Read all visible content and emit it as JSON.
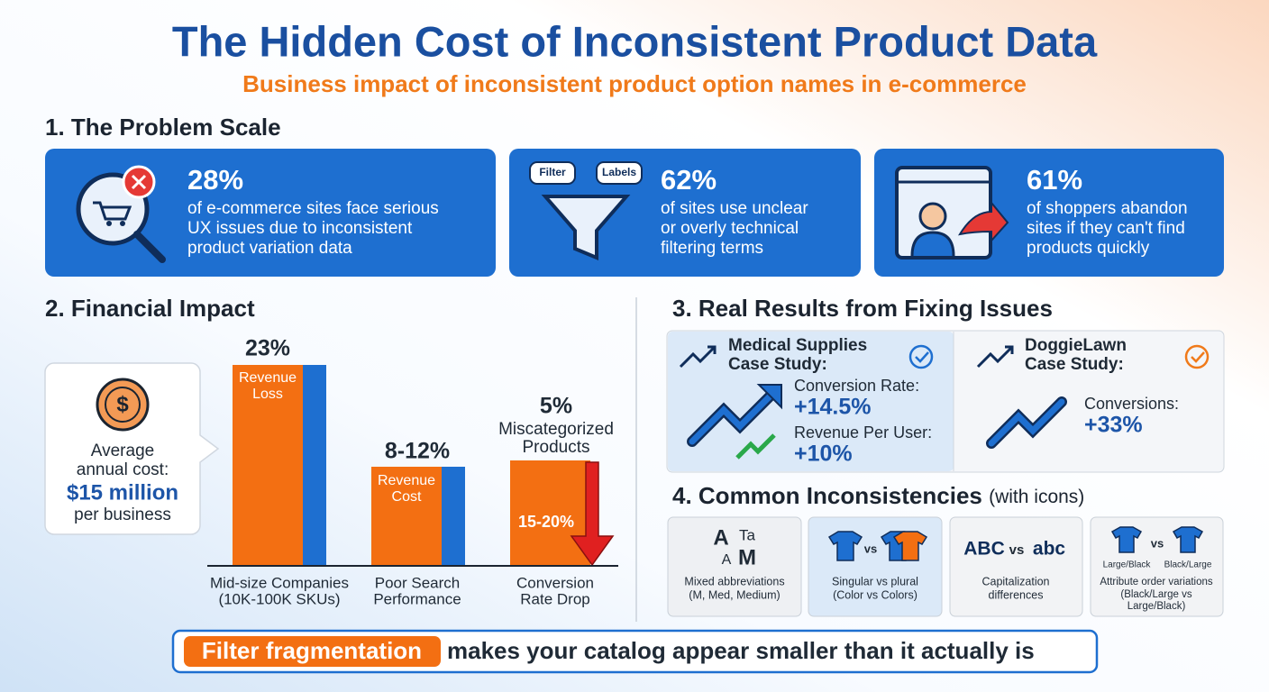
{
  "header": {
    "title": "The Hidden Cost of Inconsistent Product Data",
    "subtitle": "Business impact of inconsistent product option names in e-commerce"
  },
  "problem": {
    "heading": "1. The Problem Scale",
    "cards": [
      {
        "stat": "28%",
        "lines": [
          "of e-commerce sites face serious",
          "UX issues due to inconsistent",
          "product variation data"
        ]
      },
      {
        "stat": "62%",
        "lines": [
          "of sites use unclear",
          "or overly technical",
          "filtering terms"
        ],
        "icon_labels": [
          "Filter",
          "Labels"
        ]
      },
      {
        "stat": "61%",
        "lines": [
          "of shoppers abandon",
          "sites if they can't find",
          "products quickly"
        ]
      }
    ]
  },
  "financial": {
    "heading": "2. Financial Impact",
    "callout": {
      "lines": [
        "Average",
        "annual cost:"
      ],
      "amount": "$15 million",
      "tail": "per business"
    },
    "bars": [
      {
        "top": [
          "23%"
        ],
        "inside": [
          "Revenue",
          "Loss"
        ],
        "category": [
          "Mid-size Companies",
          "(10K-100K SKUs)"
        ]
      },
      {
        "top": [
          "8-12%"
        ],
        "inside": [
          "Revenue",
          "Cost"
        ],
        "category": [
          "Poor Search",
          "Performance"
        ]
      },
      {
        "top": [
          "5%",
          "Miscategorized",
          "Products"
        ],
        "inside": [
          "15-20%"
        ],
        "category": [
          "Conversion",
          "Rate Drop"
        ]
      }
    ]
  },
  "results": {
    "heading": "3. Real Results from Fixing Issues",
    "cases": [
      {
        "title": [
          "Medical Supplies",
          "Case Study:"
        ],
        "metrics": [
          {
            "label": "Conversion Rate:",
            "value": "+14.5%"
          },
          {
            "label": "Revenue Per User:",
            "value": "+10%"
          }
        ]
      },
      {
        "title": [
          "DoggieLawn",
          "Case Study:"
        ],
        "metrics": [
          {
            "label": "Conversions:",
            "value": "+33%"
          }
        ]
      }
    ]
  },
  "inconsistencies": {
    "heading": "4. Common Inconsistencies",
    "note": "(with icons)",
    "items": [
      {
        "visual": [
          "A",
          "Ta",
          "A",
          "M"
        ],
        "caption": [
          "Mixed abbreviations",
          "(M, Med, Medium)"
        ]
      },
      {
        "visual": [
          "vs"
        ],
        "caption": [
          "Singular vs plural",
          "(Color vs Colors)"
        ]
      },
      {
        "visual": [
          "ABC",
          "vs",
          "abc"
        ],
        "caption": [
          "Capitalization",
          "differences"
        ]
      },
      {
        "visual": [
          "vs",
          "Large/Black",
          "Black/Large"
        ],
        "caption": [
          "Attribute order variations",
          "(Black/Large vs",
          "Large/Black)"
        ]
      }
    ]
  },
  "banner": {
    "highlight": "Filter fragmentation",
    "rest": "makes your catalog appear smaller than it actually is"
  }
}
